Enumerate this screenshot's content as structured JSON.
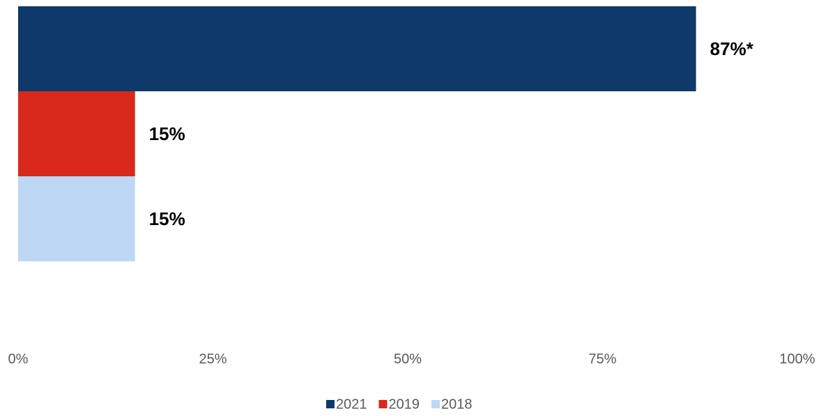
{
  "chart_data": {
    "type": "bar",
    "orientation": "horizontal",
    "categories": [
      null
    ],
    "series": [
      {
        "name": "2021",
        "color": "#0f3969",
        "values": [
          87
        ],
        "value_labels": [
          "87%*"
        ]
      },
      {
        "name": "2019",
        "color": "#da291c",
        "values": [
          15
        ],
        "value_labels": [
          "15%"
        ]
      },
      {
        "name": "2018",
        "color": "#bdd7f5",
        "values": [
          15
        ],
        "value_labels": [
          "15%"
        ]
      }
    ],
    "xlim": [
      0,
      100
    ],
    "xticks": [
      {
        "value": 0,
        "label": "0%"
      },
      {
        "value": 25,
        "label": "25%"
      },
      {
        "value": 50,
        "label": "50%"
      },
      {
        "value": 75,
        "label": "75%"
      },
      {
        "value": 100,
        "label": "100%"
      }
    ],
    "legend": "bottom"
  }
}
